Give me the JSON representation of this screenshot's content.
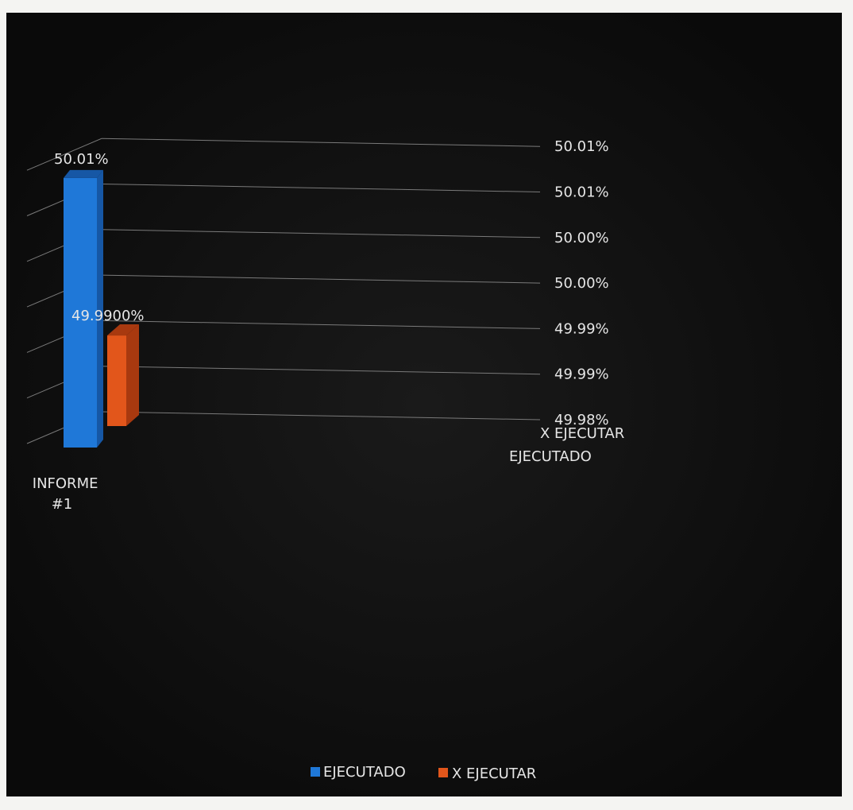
{
  "chart_data": {
    "type": "bar",
    "categories": [
      "INFORME #1"
    ],
    "category_lines": [
      "INFORME",
      "#1"
    ],
    "series": [
      {
        "name": "EJECUTADO",
        "values": [
          50.01
        ],
        "data_label": "50.01%",
        "color": "#1f78d8"
      },
      {
        "name": "X EJECUTAR",
        "values": [
          49.99
        ],
        "data_label": "49.9900%",
        "color": "#e2561b"
      }
    ],
    "y_ticks": [
      "49.98%",
      "49.99%",
      "49.99%",
      "50.00%",
      "50.00%",
      "50.01%",
      "50.01%"
    ],
    "ylim": [
      49.98,
      50.013
    ],
    "depth_axis_labels": [
      "X EJECUTAR",
      "EJECUTADO"
    ],
    "legend": {
      "position": "bottom",
      "items": [
        {
          "label": "EJECUTADO",
          "color": "#1f78d8"
        },
        {
          "label": "X EJECUTAR",
          "color": "#e2561b"
        }
      ]
    },
    "grid": true,
    "background": "#0b0b0b",
    "gridline_color": "#7a7a7a"
  }
}
